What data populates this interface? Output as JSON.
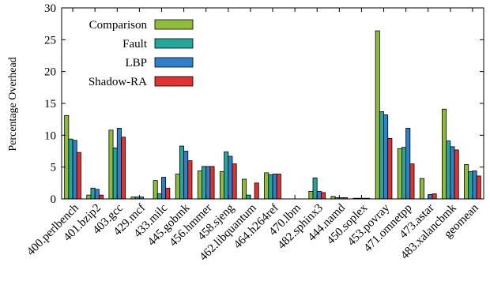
{
  "chart_data": {
    "type": "bar",
    "title": "",
    "xlabel": "",
    "ylabel": "Percentage Overhead",
    "ylim": [
      0,
      30
    ],
    "yticks": [
      0,
      5,
      10,
      15,
      20,
      25,
      30
    ],
    "grid": false,
    "legend_position": "top-left",
    "categories": [
      "400.perlbench",
      "401.bzip2",
      "403.gcc",
      "429.mcf",
      "433.milc",
      "445.gobmk",
      "456.hmmer",
      "458.sjeng",
      "462.libquantum",
      "464.h264ref",
      "470.lbm",
      "482.sphinx3",
      "444.namd",
      "450.soplex",
      "453.povray",
      "471.omnetpp",
      "473.astar",
      "483.xalancbmk",
      "geomean"
    ],
    "series": [
      {
        "name": "Comparison",
        "color": "#8fbc3c",
        "values": [
          13.1,
          0.6,
          10.8,
          0.3,
          2.9,
          3.9,
          4.4,
          4.3,
          3.1,
          4.1,
          0.0,
          1.2,
          0.4,
          0.1,
          26.4,
          7.9,
          3.2,
          14.1,
          5.4
        ]
      },
      {
        "name": "Fault",
        "color": "#26a69a",
        "values": [
          9.4,
          1.7,
          8.0,
          0.3,
          0.8,
          8.3,
          5.1,
          7.4,
          0.6,
          3.8,
          0.0,
          3.3,
          0.2,
          0.1,
          13.7,
          8.1,
          0.0,
          9.1,
          4.3
        ]
      },
      {
        "name": "LBP",
        "color": "#2f7fc9",
        "values": [
          9.2,
          1.5,
          11.1,
          0.3,
          3.4,
          7.5,
          5.1,
          6.7,
          0.0,
          3.9,
          0.0,
          1.2,
          0.2,
          0.1,
          13.2,
          11.1,
          0.7,
          8.2,
          4.4
        ]
      },
      {
        "name": "Shadow-RA",
        "color": "#e03232",
        "values": [
          7.3,
          0.6,
          9.7,
          0.0,
          1.7,
          6.0,
          5.1,
          5.5,
          2.5,
          3.9,
          0.0,
          1.0,
          0.2,
          0.1,
          9.5,
          5.5,
          0.8,
          7.7,
          3.6
        ]
      }
    ]
  }
}
